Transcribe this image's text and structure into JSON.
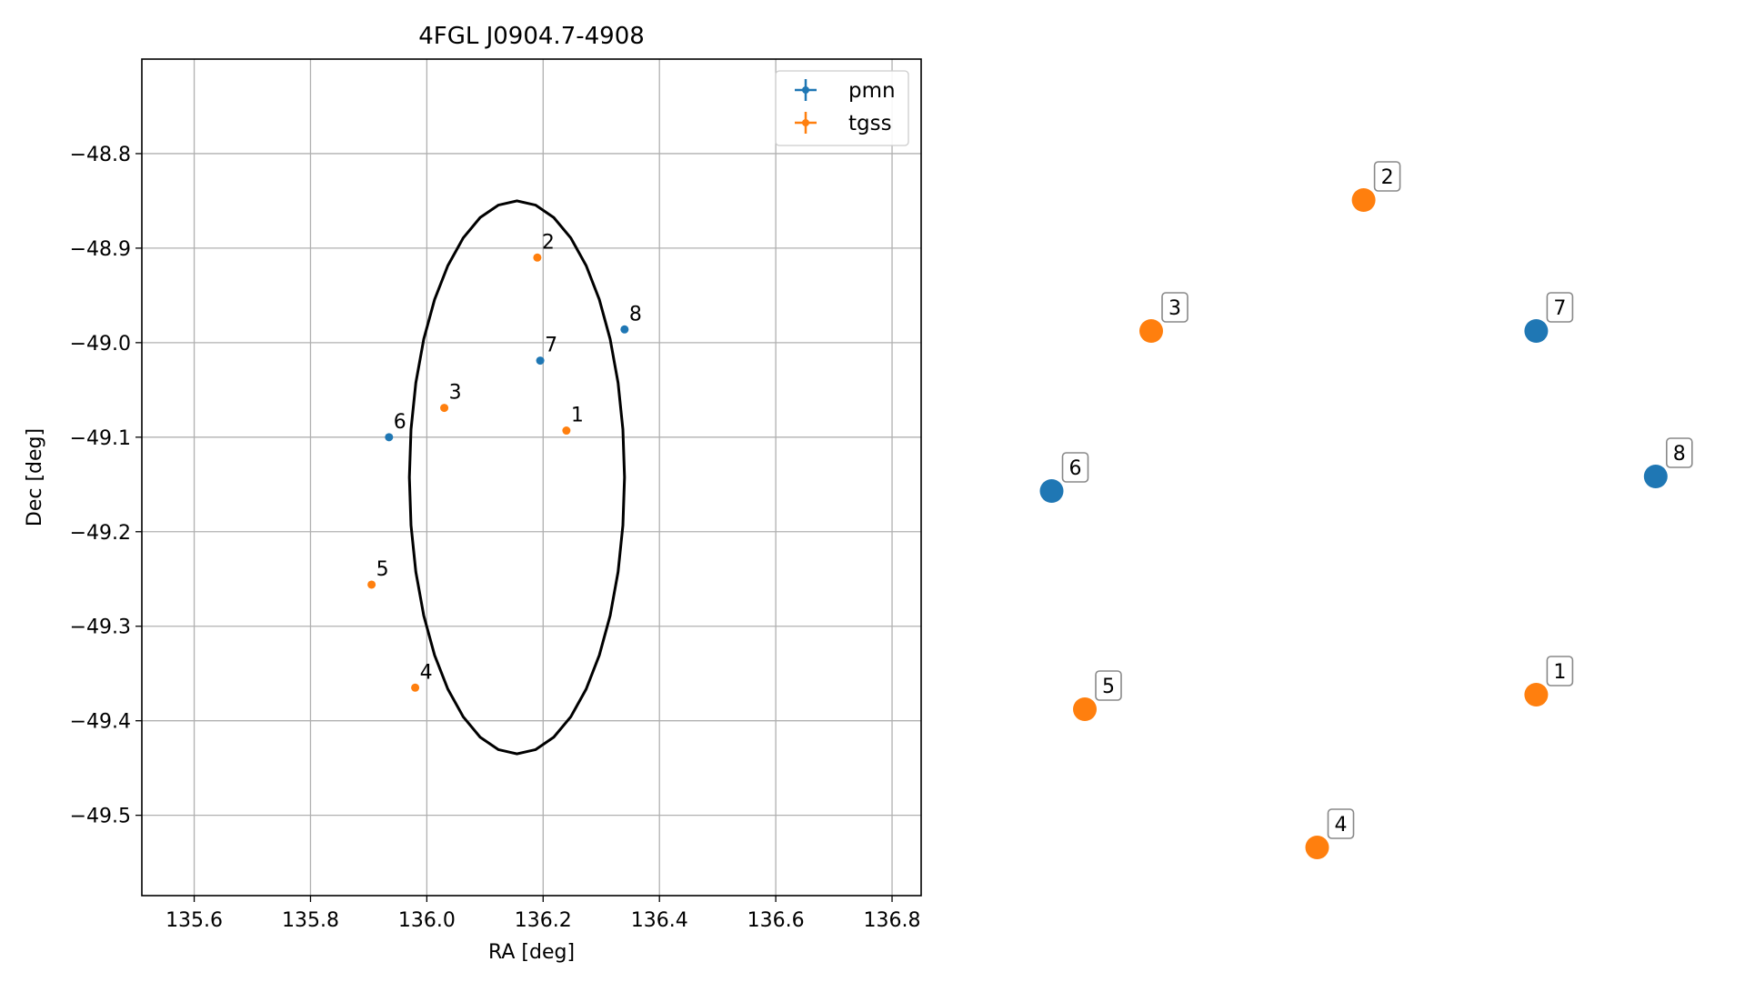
{
  "chart_data": [
    {
      "type": "scatter",
      "title": "4FGL J0904.7-4908",
      "xlabel": "RA [deg]",
      "ylabel": "Dec [deg]",
      "xlim": [
        135.51,
        136.85
      ],
      "ylim": [
        -49.585,
        -48.7
      ],
      "xticks": [
        135.6,
        135.8,
        136.0,
        136.2,
        136.4,
        136.6,
        136.8
      ],
      "xtick_labels": [
        "135.6",
        "135.8",
        "136.0",
        "136.2",
        "136.4",
        "136.6",
        "136.8"
      ],
      "yticks": [
        -48.8,
        -48.9,
        -49.0,
        -49.1,
        -49.2,
        -49.3,
        -49.4,
        -49.5
      ],
      "ytick_labels": [
        "−48.8",
        "−48.9",
        "−49.0",
        "−49.1",
        "−49.2",
        "−49.3",
        "−49.4",
        "−49.5"
      ],
      "grid": true,
      "legend_position": "top-right",
      "legend": [
        {
          "name": "pmn",
          "color": "#1f77b4"
        },
        {
          "name": "tgss",
          "color": "#ff7f0e"
        }
      ],
      "ellipse": {
        "center": [
          136.155,
          -49.1425
        ],
        "ra_semi_axis_deg": 0.185,
        "dec_semi_axis_deg": 0.2925,
        "color": "#000000"
      },
      "series": [
        {
          "name": "pmn",
          "color": "#1f77b4",
          "points": [
            {
              "label": "6",
              "ra": 135.935,
              "dec": -49.1
            },
            {
              "label": "7",
              "ra": 136.195,
              "dec": -49.019
            },
            {
              "label": "8",
              "ra": 136.34,
              "dec": -48.986
            }
          ]
        },
        {
          "name": "tgss",
          "color": "#ff7f0e",
          "points": [
            {
              "label": "1",
              "ra": 136.24,
              "dec": -49.093
            },
            {
              "label": "2",
              "ra": 136.19,
              "dec": -48.91
            },
            {
              "label": "3",
              "ra": 136.03,
              "dec": -49.069
            },
            {
              "label": "4",
              "ra": 135.98,
              "dec": -49.365
            },
            {
              "label": "5",
              "ra": 135.905,
              "dec": -49.256
            }
          ]
        }
      ]
    },
    {
      "type": "scatter",
      "title": "",
      "xlabel": "",
      "ylabel": "",
      "grid": false,
      "axes_visible": false,
      "xlim": [
        0,
        1
      ],
      "ylim": [
        0,
        1
      ],
      "series": [
        {
          "name": "pmn",
          "color": "#1f77b4",
          "points": [
            {
              "label": "6",
              "x": 0.05,
              "y": 0.5
            },
            {
              "label": "7",
              "x": 0.78,
              "y": 0.72
            },
            {
              "label": "8",
              "x": 0.96,
              "y": 0.52
            }
          ]
        },
        {
          "name": "tgss",
          "color": "#ff7f0e",
          "points": [
            {
              "label": "1",
              "x": 0.78,
              "y": 0.22
            },
            {
              "label": "2",
              "x": 0.52,
              "y": 0.9
            },
            {
              "label": "3",
              "x": 0.2,
              "y": 0.72
            },
            {
              "label": "4",
              "x": 0.45,
              "y": 0.01
            },
            {
              "label": "5",
              "x": 0.1,
              "y": 0.2
            }
          ]
        }
      ]
    }
  ]
}
